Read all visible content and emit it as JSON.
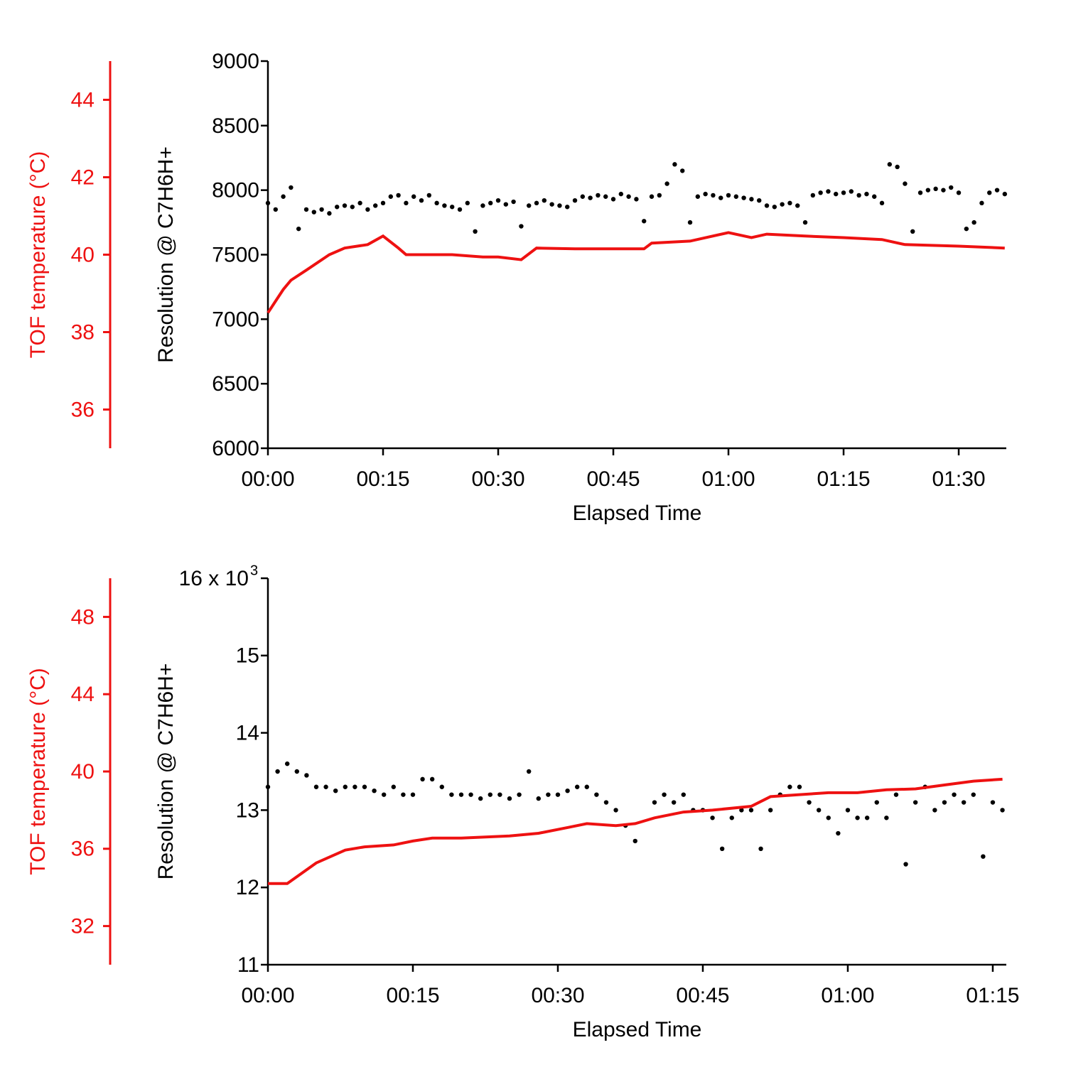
{
  "chart_data": [
    {
      "type": "scatter",
      "xlabel": "Elapsed Time",
      "ylabel": "Resolution @ C7H6H+",
      "y2label": "TOF temperature (°C)",
      "xlim": [
        0,
        96.2
      ],
      "xticks": [
        {
          "value": 0,
          "label": "00:00"
        },
        {
          "value": 15,
          "label": "00:15"
        },
        {
          "value": 30,
          "label": "00:30"
        },
        {
          "value": 45,
          "label": "00:45"
        },
        {
          "value": 60,
          "label": "01:00"
        },
        {
          "value": 75,
          "label": "01:15"
        },
        {
          "value": 90,
          "label": "01:30"
        }
      ],
      "ylim": [
        6000,
        9000
      ],
      "yticks": [
        6000,
        6500,
        7000,
        7500,
        8000,
        8500,
        9000
      ],
      "y2lim": [
        35,
        45
      ],
      "y2ticks": [
        36,
        38,
        40,
        42,
        44
      ],
      "series": [
        {
          "color": "#000000",
          "style": "markers",
          "x": [
            0,
            1,
            2,
            3,
            4,
            5,
            6,
            7,
            8,
            9,
            10,
            11,
            12,
            13,
            14,
            15,
            16,
            17,
            18,
            19,
            20,
            21,
            22,
            23,
            24,
            25,
            26,
            27,
            28,
            29,
            30,
            31,
            32,
            33,
            34,
            35,
            36,
            37,
            38,
            39,
            40,
            41,
            42,
            43,
            44,
            45,
            46,
            47,
            48,
            49,
            50,
            51,
            52,
            53,
            54,
            55,
            56,
            57,
            58,
            59,
            60,
            61,
            62,
            63,
            64,
            65,
            66,
            67,
            68,
            69,
            70,
            71,
            72,
            73,
            74,
            75,
            76,
            77,
            78,
            79,
            80,
            81,
            82,
            83,
            84,
            85,
            86,
            87,
            88,
            89,
            90,
            91,
            92,
            93,
            94,
            95,
            96
          ],
          "values": [
            7900,
            7850,
            7950,
            8020,
            7700,
            7850,
            7830,
            7850,
            7820,
            7870,
            7880,
            7870,
            7900,
            7850,
            7880,
            7900,
            7950,
            7960,
            7900,
            7950,
            7920,
            7960,
            7900,
            7880,
            7870,
            7850,
            7900,
            7680,
            7880,
            7900,
            7920,
            7890,
            7910,
            7720,
            7880,
            7900,
            7920,
            7890,
            7880,
            7870,
            7920,
            7950,
            7940,
            7960,
            7950,
            7930,
            7970,
            7950,
            7930,
            7760,
            7950,
            7960,
            8050,
            8200,
            8150,
            7750,
            7950,
            7970,
            7960,
            7940,
            7960,
            7950,
            7940,
            7930,
            7920,
            7880,
            7870,
            7890,
            7900,
            7880,
            7750,
            7960,
            7980,
            7990,
            7970,
            7980,
            7990,
            7960,
            7970,
            7950,
            7900,
            8200,
            8180,
            8050,
            7680,
            7980,
            8000,
            8010,
            8000,
            8020,
            7980,
            7700,
            7750,
            7900,
            7980,
            8000,
            7970
          ]
        },
        {
          "color": "#ee1111",
          "style": "line",
          "axis": "y2",
          "x": [
            0,
            1,
            2,
            3,
            5,
            8,
            10,
            13,
            15,
            17,
            18,
            20,
            24,
            28,
            30,
            33,
            35,
            40,
            45,
            49,
            50,
            55,
            60,
            63,
            65,
            70,
            75,
            80,
            83,
            90,
            96
          ],
          "values": [
            38.5,
            38.8,
            39.1,
            39.34,
            39.6,
            40.0,
            40.17,
            40.26,
            40.48,
            40.17,
            40.0,
            40.0,
            40.0,
            39.94,
            39.94,
            39.87,
            40.17,
            40.15,
            40.15,
            40.15,
            40.3,
            40.35,
            40.57,
            40.44,
            40.53,
            40.48,
            40.44,
            40.39,
            40.26,
            40.22,
            40.17
          ]
        }
      ]
    },
    {
      "type": "scatter",
      "xlabel": "Elapsed Time",
      "ylabel": "Resolution @ C7H6H+",
      "y2label": "TOF temperature (°C)",
      "xlim": [
        0,
        76.4
      ],
      "xticks": [
        {
          "value": 0,
          "label": "00:00"
        },
        {
          "value": 15,
          "label": "00:15"
        },
        {
          "value": 30,
          "label": "00:30"
        },
        {
          "value": 45,
          "label": "00:45"
        },
        {
          "value": 60,
          "label": "01:00"
        },
        {
          "value": 75,
          "label": "01:15"
        }
      ],
      "ylim": [
        11,
        16
      ],
      "yticks": [
        11,
        12,
        13,
        14,
        15,
        {
          "value": 16,
          "label": "16 x 10"
        }
      ],
      "ytick_exponent": "3",
      "y2lim": [
        30,
        50
      ],
      "y2ticks": [
        32,
        36,
        40,
        44,
        48
      ],
      "series": [
        {
          "color": "#000000",
          "style": "markers",
          "x": [
            0,
            1,
            2,
            3,
            4,
            5,
            6,
            7,
            8,
            9,
            10,
            11,
            12,
            13,
            14,
            15,
            16,
            17,
            18,
            19,
            20,
            21,
            22,
            23,
            24,
            25,
            26,
            27,
            28,
            29,
            30,
            31,
            32,
            33,
            34,
            35,
            36,
            37,
            38,
            40,
            41,
            42,
            43,
            44,
            45,
            46,
            47,
            48,
            49,
            50,
            51,
            52,
            53,
            54,
            55,
            56,
            57,
            58,
            59,
            60,
            61,
            62,
            63,
            64,
            65,
            66,
            67,
            68,
            69,
            70,
            71,
            72,
            73,
            74,
            75,
            76
          ],
          "values": [
            13.3,
            13.5,
            13.6,
            13.5,
            13.45,
            13.3,
            13.3,
            13.25,
            13.3,
            13.3,
            13.3,
            13.25,
            13.2,
            13.3,
            13.2,
            13.2,
            13.4,
            13.4,
            13.3,
            13.2,
            13.2,
            13.2,
            13.15,
            13.2,
            13.2,
            13.15,
            13.2,
            13.5,
            13.15,
            13.2,
            13.2,
            13.25,
            13.3,
            13.3,
            13.2,
            13.1,
            13.0,
            12.8,
            12.6,
            13.1,
            13.2,
            13.1,
            13.2,
            13.0,
            13.0,
            12.9,
            12.5,
            12.9,
            13.0,
            13.0,
            12.5,
            13.0,
            13.2,
            13.3,
            13.3,
            13.1,
            13.0,
            12.9,
            12.7,
            13.0,
            12.9,
            12.9,
            13.1,
            12.9,
            13.2,
            12.3,
            13.1,
            13.3,
            13.0,
            13.1,
            13.2,
            13.1,
            13.2,
            12.4,
            13.1,
            13.0
          ]
        },
        {
          "color": "#ee1111",
          "style": "line",
          "axis": "y2",
          "x": [
            0,
            2,
            5,
            8,
            10,
            13,
            15,
            17,
            20,
            25,
            28,
            31,
            33,
            36,
            38,
            40,
            43,
            46,
            50,
            52,
            55,
            58,
            61,
            64,
            67,
            70,
            73,
            76
          ],
          "values": [
            34.2,
            34.2,
            35.27,
            35.93,
            36.1,
            36.2,
            36.4,
            36.55,
            36.55,
            36.66,
            36.8,
            37.1,
            37.3,
            37.2,
            37.3,
            37.6,
            37.9,
            38.0,
            38.2,
            38.7,
            38.8,
            38.9,
            38.9,
            39.05,
            39.1,
            39.3,
            39.5,
            39.6
          ]
        }
      ]
    }
  ]
}
